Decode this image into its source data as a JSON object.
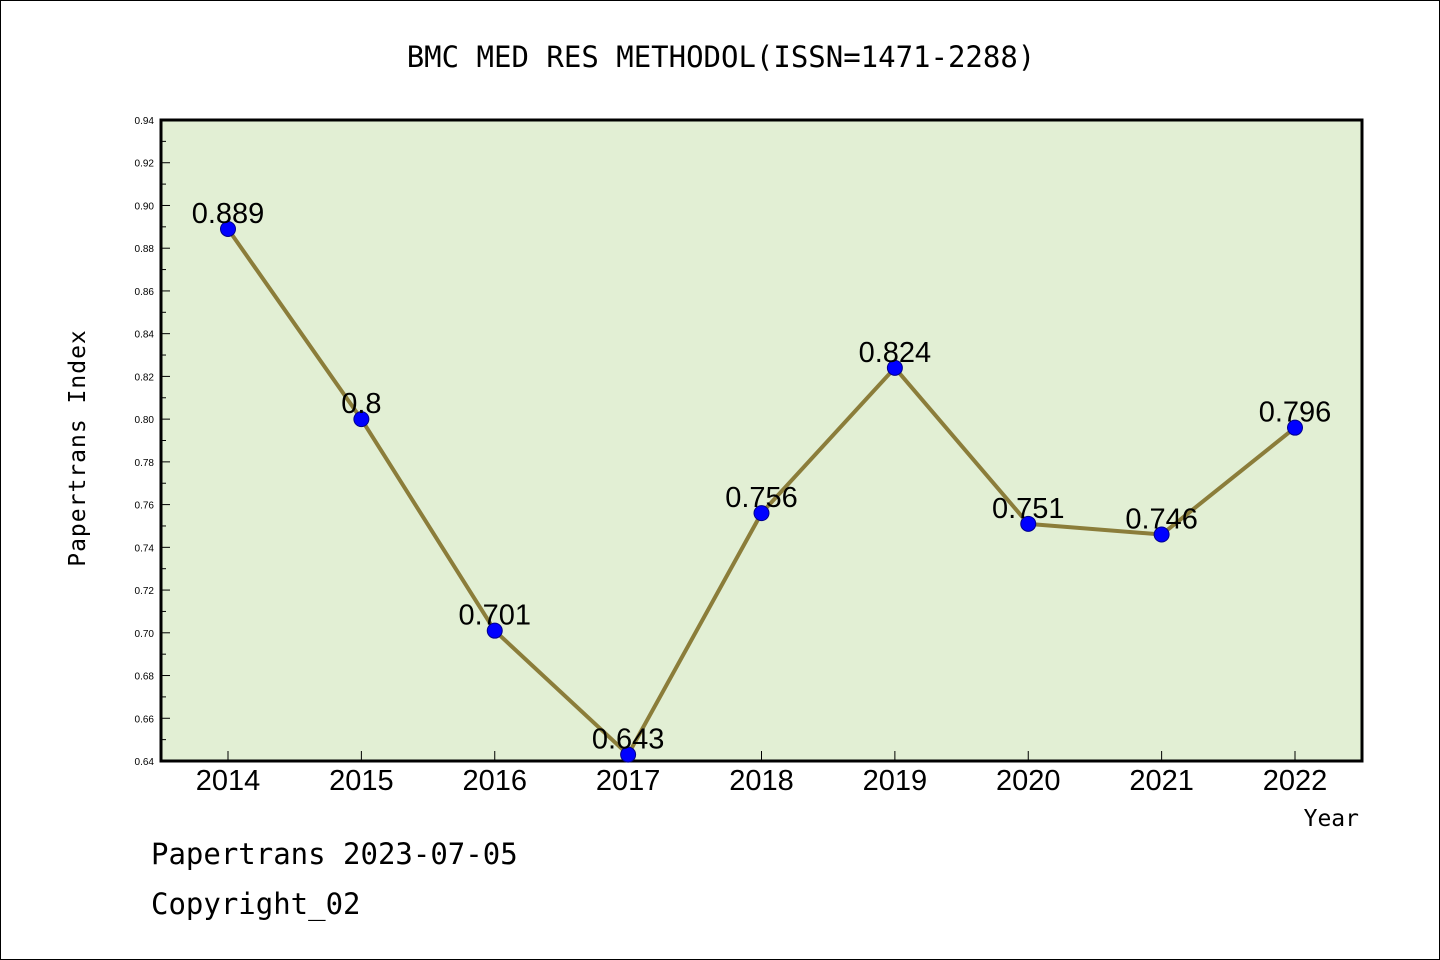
{
  "chart_data": {
    "type": "line",
    "title": "BMC MED RES METHODOL(ISSN=1471-2288)",
    "xlabel": "Year",
    "ylabel": "Papertrans Index",
    "categories": [
      "2014",
      "2015",
      "2016",
      "2017",
      "2018",
      "2019",
      "2020",
      "2021",
      "2022"
    ],
    "values": [
      0.889,
      0.8,
      0.701,
      0.643,
      0.756,
      0.824,
      0.751,
      0.746,
      0.796
    ],
    "value_labels": [
      "0.889",
      "0.8",
      "0.701",
      "0.643",
      "0.756",
      "0.824",
      "0.751",
      "0.746",
      "0.796"
    ],
    "yticks": [
      "0.64",
      "0.66",
      "0.68",
      "0.70",
      "0.72",
      "0.74",
      "0.76",
      "0.78",
      "0.80",
      "0.82",
      "0.84",
      "0.86",
      "0.88",
      "0.90",
      "0.92",
      "0.94"
    ],
    "ylim": [
      0.64,
      0.94
    ],
    "grid": false,
    "colors": {
      "plot_background": "#e2efd4",
      "line": "#8b7d3a",
      "marker": "#0000ff"
    }
  },
  "footer": {
    "line1": "Papertrans 2023-07-05",
    "line2": "Copyright_02"
  }
}
